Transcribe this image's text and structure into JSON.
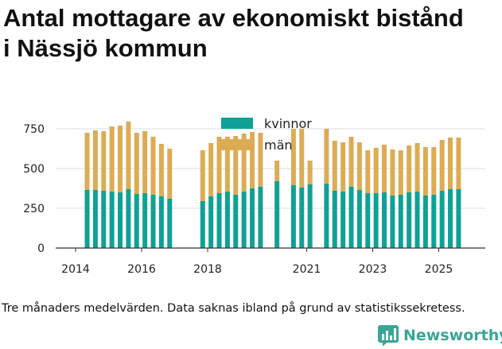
{
  "title_lines": [
    "Antal mottagare av ekonomiskt bistånd",
    "i Nässjö kommun"
  ],
  "footnote": "Tre månaders medelvärden. Data saknas ibland på grund av statistikssekretess.",
  "brand": {
    "name": "Newsworthy",
    "icon": "bar-chart-icon",
    "color": "#3aa596"
  },
  "colors": {
    "kvinnor": "#0fa195",
    "man": "#dcac55",
    "grid": "#dddddd",
    "axis": "#333333"
  },
  "chart_data": {
    "type": "bar",
    "stacked": true,
    "title": "Antal mottagare av ekonomiskt bistånd i Nässjö kommun",
    "xlabel": "",
    "ylabel": "",
    "ylim": [
      0,
      800
    ],
    "yticks": [
      0,
      250,
      500,
      750
    ],
    "xticks": [
      "2014",
      "2016",
      "2018",
      "2021",
      "2023",
      "2025"
    ],
    "xtick_positions": [
      2014.0,
      2016.0,
      2018.0,
      2021.0,
      2023.0,
      2025.0
    ],
    "legend": {
      "placement": "top-center",
      "entries": [
        "kvinnor",
        "män"
      ]
    },
    "series": [
      {
        "name": "kvinnor",
        "points": [
          [
            2014.35,
            365
          ],
          [
            2014.6,
            365
          ],
          [
            2014.85,
            360
          ],
          [
            2015.1,
            355
          ],
          [
            2015.35,
            350
          ],
          [
            2015.6,
            370
          ],
          [
            2015.85,
            340
          ],
          [
            2016.1,
            345
          ],
          [
            2016.35,
            335
          ],
          [
            2016.6,
            325
          ],
          [
            2016.85,
            310
          ],
          [
            2017.85,
            295
          ],
          [
            2018.1,
            325
          ],
          [
            2018.35,
            345
          ],
          [
            2018.6,
            355
          ],
          [
            2018.85,
            335
          ],
          [
            2019.1,
            355
          ],
          [
            2019.35,
            375
          ],
          [
            2019.6,
            385
          ],
          [
            2020.1,
            420
          ],
          [
            2020.6,
            395
          ],
          [
            2020.85,
            380
          ],
          [
            2021.1,
            400
          ],
          [
            2021.6,
            405
          ],
          [
            2021.85,
            360
          ],
          [
            2022.1,
            355
          ],
          [
            2022.35,
            385
          ],
          [
            2022.6,
            365
          ],
          [
            2022.85,
            345
          ],
          [
            2023.1,
            345
          ],
          [
            2023.35,
            350
          ],
          [
            2023.6,
            330
          ],
          [
            2023.85,
            335
          ],
          [
            2024.1,
            350
          ],
          [
            2024.35,
            355
          ],
          [
            2024.6,
            330
          ],
          [
            2024.85,
            335
          ],
          [
            2025.1,
            360
          ],
          [
            2025.35,
            370
          ],
          [
            2025.6,
            370
          ]
        ]
      },
      {
        "name": "män",
        "points": [
          [
            2014.35,
            360
          ],
          [
            2014.6,
            375
          ],
          [
            2014.85,
            375
          ],
          [
            2015.1,
            410
          ],
          [
            2015.35,
            420
          ],
          [
            2015.6,
            425
          ],
          [
            2015.85,
            385
          ],
          [
            2016.1,
            390
          ],
          [
            2016.35,
            365
          ],
          [
            2016.6,
            330
          ],
          [
            2016.85,
            315
          ],
          [
            2017.85,
            320
          ],
          [
            2018.1,
            335
          ],
          [
            2018.35,
            355
          ],
          [
            2018.6,
            345
          ],
          [
            2018.85,
            370
          ],
          [
            2019.1,
            365
          ],
          [
            2019.35,
            355
          ],
          [
            2019.6,
            340
          ],
          [
            2020.1,
            130
          ],
          [
            2020.6,
            355
          ],
          [
            2020.85,
            370
          ],
          [
            2021.1,
            150
          ],
          [
            2021.6,
            345
          ],
          [
            2021.85,
            315
          ],
          [
            2022.1,
            310
          ],
          [
            2022.35,
            315
          ],
          [
            2022.6,
            300
          ],
          [
            2022.85,
            270
          ],
          [
            2023.1,
            285
          ],
          [
            2023.35,
            300
          ],
          [
            2023.6,
            290
          ],
          [
            2023.85,
            280
          ],
          [
            2024.1,
            295
          ],
          [
            2024.35,
            305
          ],
          [
            2024.6,
            305
          ],
          [
            2024.85,
            300
          ],
          [
            2025.1,
            320
          ],
          [
            2025.35,
            325
          ],
          [
            2025.6,
            325
          ]
        ]
      }
    ]
  }
}
